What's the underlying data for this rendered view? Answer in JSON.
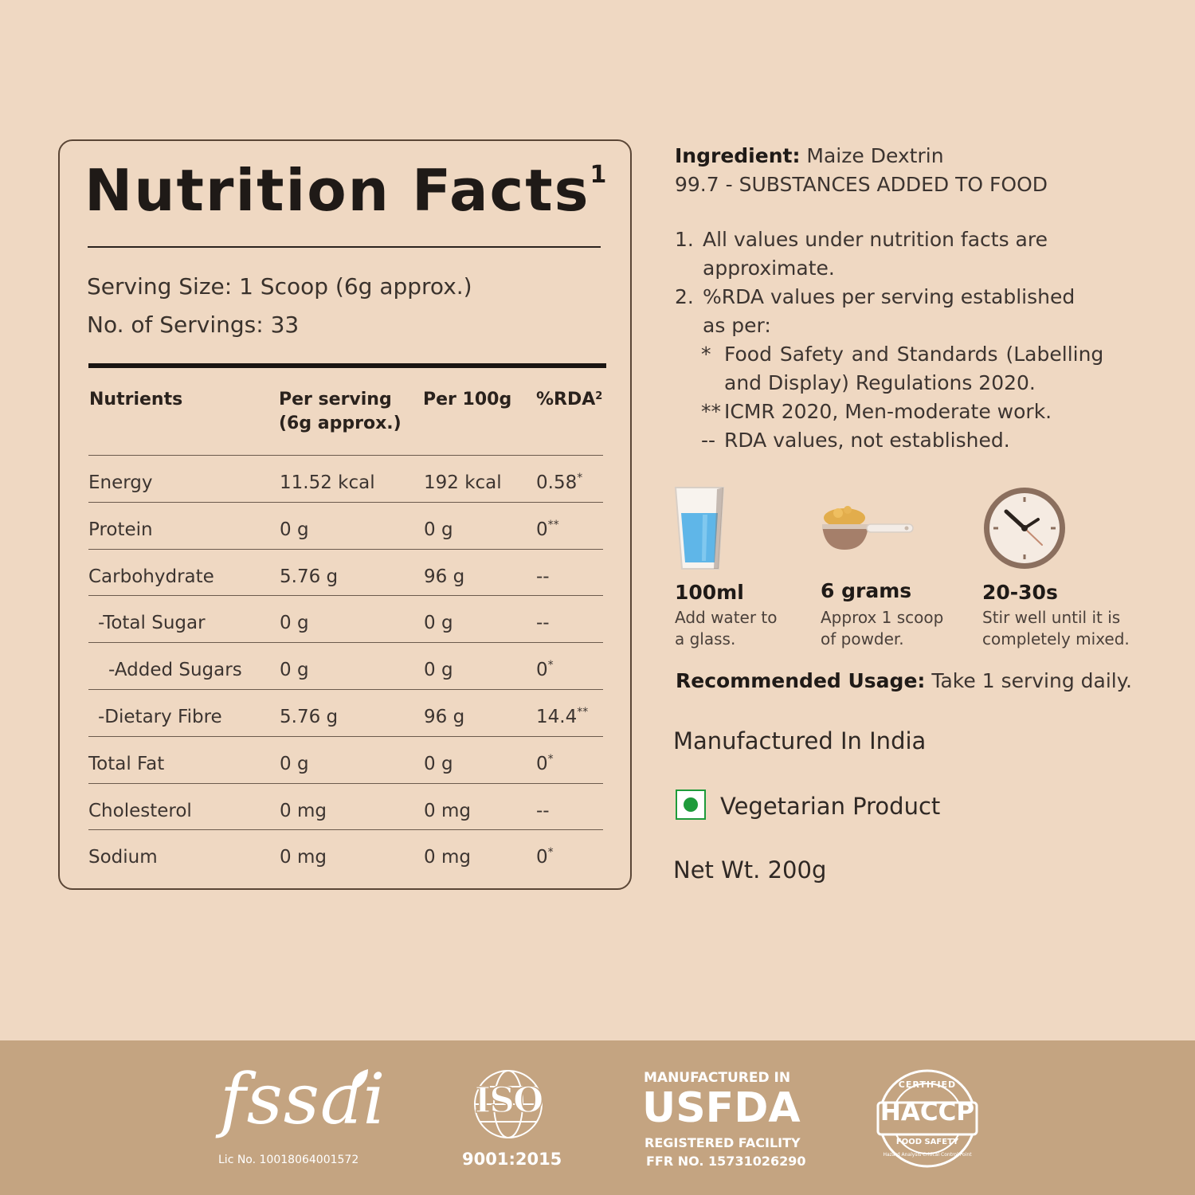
{
  "nutrition": {
    "title": "Nutrition Facts",
    "title_sup": "1",
    "serving_size": "Serving Size: 1 Scoop (6g approx.)",
    "servings": "No. of Servings: 33",
    "headers": {
      "nutrients": "Nutrients",
      "per_serving_1": "Per serving",
      "per_serving_2": "(6g approx.)",
      "per_100g": "Per 100g",
      "rda": "%RDA",
      "rda_sup": "2"
    },
    "rows": [
      {
        "name": "Energy",
        "serving": "11.52 kcal",
        "per100": "192 kcal",
        "rda": "0.58",
        "rda_sup": "*"
      },
      {
        "name": "Protein",
        "serving": "0 g",
        "per100": "0 g",
        "rda": "0",
        "rda_sup": "**"
      },
      {
        "name": "Carbohydrate",
        "serving": "5.76 g",
        "per100": "96 g",
        "rda": "--",
        "rda_sup": ""
      },
      {
        "name": "-Total Sugar",
        "serving": "0 g",
        "per100": "0 g",
        "rda": "--",
        "rda_sup": ""
      },
      {
        "name": "-Added Sugars",
        "serving": "0 g",
        "per100": "0 g",
        "rda": "0",
        "rda_sup": "*"
      },
      {
        "name": "-Dietary Fibre",
        "serving": "5.76 g",
        "per100": "96 g",
        "rda": "14.4",
        "rda_sup": "**"
      },
      {
        "name": "Total Fat",
        "serving": "0 g",
        "per100": "0 g",
        "rda": "0",
        "rda_sup": "*"
      },
      {
        "name": "Cholesterol",
        "serving": "0 mg",
        "per100": "0 mg",
        "rda": "--",
        "rda_sup": ""
      },
      {
        "name": "Sodium",
        "serving": "0 mg",
        "per100": "0 mg",
        "rda": "0",
        "rda_sup": "*"
      }
    ]
  },
  "info": {
    "ingredient_label": "Ingredient:",
    "ingredient_value": "Maize Dextrin",
    "substances": "99.7 - SUBSTANCES ADDED TO FOOD",
    "note1_num": "1.",
    "note1_line1": "All values under nutrition facts are",
    "note1_line2": "approximate.",
    "note2_num": "2.",
    "note2_line1": "%RDA values per serving established",
    "note2_line2": "as per:",
    "sub1_mark": "*",
    "sub1_line1": "Food  Safety  and  Standards  (Labelling",
    "sub1_line2": "and Display) Regulations 2020.",
    "sub2_mark": "**",
    "sub2_text": "ICMR 2020, Men-moderate work.",
    "sub3_mark": "--",
    "sub3_text": "RDA values, not established."
  },
  "steps": [
    {
      "icon": "water-glass",
      "label": "100ml",
      "line1": "Add water to",
      "line2": "a glass."
    },
    {
      "icon": "powder-scoop",
      "label": "6 grams",
      "line1": "Approx 1 scoop",
      "line2": "of powder."
    },
    {
      "icon": "clock",
      "label": "20-30s",
      "line1": "Stir well until it is",
      "line2": "completely mixed."
    }
  ],
  "usage_label": "Recommended Usage:",
  "usage_value": "Take 1 serving daily.",
  "manufactured": "Manufactured In India",
  "veg": "Vegetarian Product",
  "net_wt": "Net Wt. 200g",
  "footer": {
    "fssai_logo": "fssai",
    "fssai_lic": "Lic No. 10018064001572",
    "iso_logo": "ISO",
    "iso_num": "9001:2015",
    "usfda_top": "MANUFACTURED IN",
    "usfda_main": "USFDA",
    "usfda_reg": "REGISTERED FACILITY",
    "usfda_ffr": "FFR NO. 15731026290",
    "haccp_main": "HACCP",
    "haccp_top": "CERTIFIED",
    "haccp_bottom": "FOOD SAFETY",
    "haccp_ring": "Hazard Analysis Critical Control Point"
  },
  "colors": {
    "background": "#efd8c2",
    "footer": "#c4a481",
    "veg_green": "#1e9b3b"
  }
}
